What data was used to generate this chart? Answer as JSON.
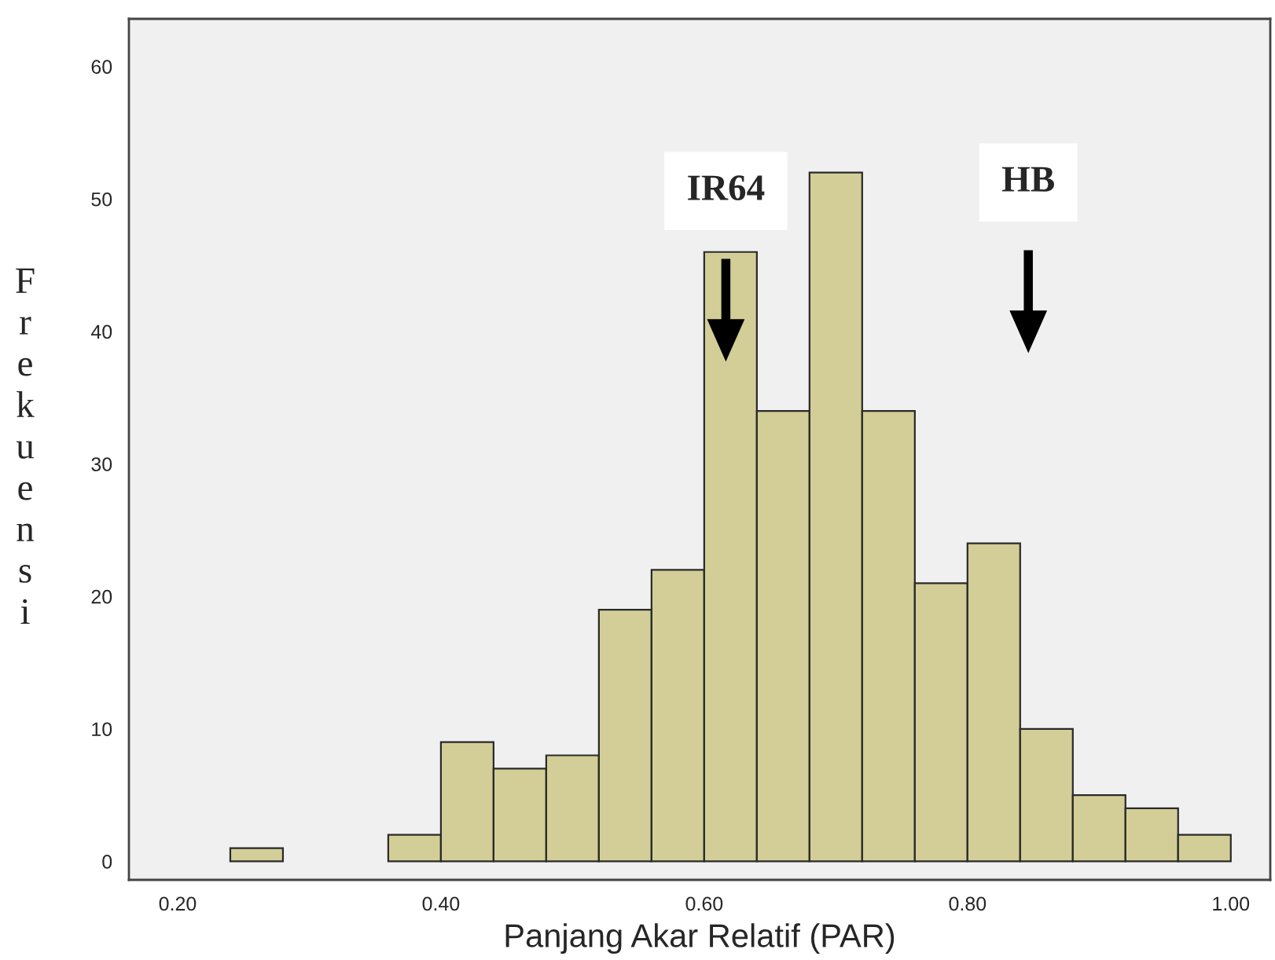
{
  "chart_data": {
    "type": "histogram",
    "xlabel": "Panjang Akar Relatif (PAR)",
    "ylabel": "Frekuensi",
    "bins": [
      0.24,
      0.28,
      0.32,
      0.36,
      0.4,
      0.44,
      0.48,
      0.52,
      0.56,
      0.6,
      0.64,
      0.68,
      0.72,
      0.76,
      0.8,
      0.84,
      0.88,
      0.92,
      0.96,
      1.0
    ],
    "values": [
      1,
      0,
      0,
      2,
      9,
      7,
      8,
      19,
      22,
      46,
      34,
      52,
      34,
      21,
      24,
      10,
      5,
      4,
      2
    ],
    "color": "#d3ce97",
    "xlim": [
      0.163,
      1.03
    ],
    "ylim": [
      -1.4,
      63.6
    ],
    "xticks": [
      {
        "value": 0.2,
        "label": "0.20"
      },
      {
        "value": 0.4,
        "label": "0.40"
      },
      {
        "value": 0.6,
        "label": "0.60"
      },
      {
        "value": 0.8,
        "label": "0.80"
      },
      {
        "value": 1.0,
        "label": "1.00"
      }
    ],
    "yticks": [
      0,
      10,
      20,
      30,
      40,
      50,
      60
    ],
    "annotations": [
      "IR64",
      "HB"
    ]
  }
}
